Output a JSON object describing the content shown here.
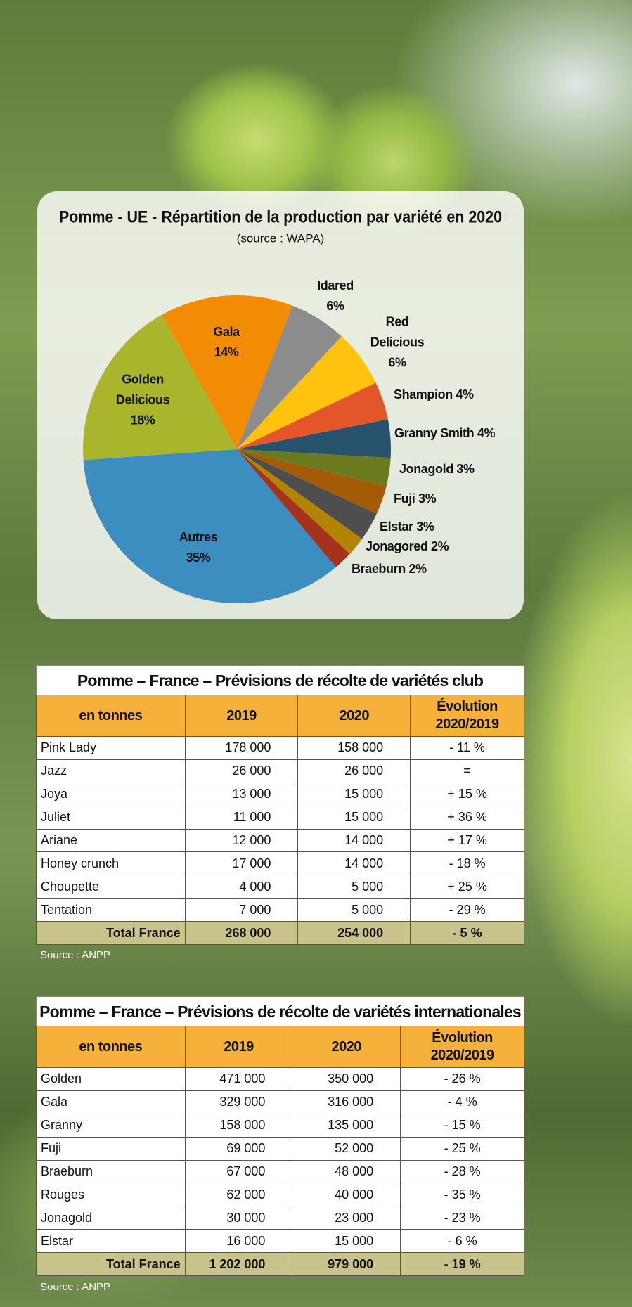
{
  "chart_data": {
    "type": "pie",
    "title": "Pomme - UE - Répartition de la production par variété en 2020",
    "subtitle": "(source : WAPA)",
    "categories": [
      "Autres",
      "Golden Delicious",
      "Gala",
      "Idared",
      "Red Delicious",
      "Shampion",
      "Granny Smith",
      "Jonagold",
      "Fuji",
      "Elstar",
      "Jonagored",
      "Braeburn"
    ],
    "values": [
      35,
      18,
      14,
      6,
      6,
      4,
      4,
      3,
      3,
      3,
      2,
      2
    ],
    "value_labels": [
      "35%",
      "18%",
      "14%",
      "6%",
      "6%",
      "4%",
      "4%",
      "3%",
      "3%",
      "3%",
      "2%",
      "2%"
    ],
    "colors": [
      "#3d8ec0",
      "#a9b52a",
      "#f28c05",
      "#8c8c8c",
      "#ffc20e",
      "#e3562a",
      "#26536b",
      "#6b7a1f",
      "#a45b05",
      "#4e4e4e",
      "#b18405",
      "#a5321b"
    ]
  },
  "table_club": {
    "title": "Pomme – France – Prévisions de récolte de variétés club",
    "header": [
      "en tonnes",
      "2019",
      "2020",
      "Évolution 2020/2019"
    ],
    "rows": [
      [
        "Pink Lady",
        "178 000",
        "158 000",
        "- 11 %"
      ],
      [
        "Jazz",
        "26 000",
        "26 000",
        "="
      ],
      [
        "Joya",
        "13 000",
        "15 000",
        "+ 15 %"
      ],
      [
        "Juliet",
        "11 000",
        "15 000",
        "+ 36 %"
      ],
      [
        "Ariane",
        "12 000",
        "14 000",
        "+ 17 %"
      ],
      [
        "Honey crunch",
        "17 000",
        "14 000",
        "- 18 %"
      ],
      [
        "Choupette",
        "4 000",
        "5 000",
        "+ 25 %"
      ],
      [
        "Tentation",
        "7 000",
        "5 000",
        "- 29 %"
      ]
    ],
    "total": [
      "Total France",
      "268 000",
      "254 000",
      "- 5 %"
    ],
    "source": "Source : ANPP"
  },
  "table_intl": {
    "title": "Pomme – France – Prévisions de récolte de variétés internationales",
    "header": [
      "en tonnes",
      "2019",
      "2020",
      "Évolution 2020/2019"
    ],
    "rows": [
      [
        "Golden",
        "471 000",
        "350 000",
        "- 26 %"
      ],
      [
        "Gala",
        "329 000",
        "316 000",
        "- 4 %"
      ],
      [
        "Granny",
        "158 000",
        "135 000",
        "- 15 %"
      ],
      [
        "Fuji",
        "69 000",
        "52 000",
        "- 25 %"
      ],
      [
        "Braeburn",
        "67 000",
        "48 000",
        "- 28 %"
      ],
      [
        "Rouges",
        "62 000",
        "40 000",
        "- 35 %"
      ],
      [
        "Jonagold",
        "30 000",
        "23 000",
        "- 23 %"
      ],
      [
        "Elstar",
        "16 000",
        "15 000",
        "- 6 %"
      ]
    ],
    "total": [
      "Total France",
      "1 202 000",
      "979 000",
      "- 19 %"
    ],
    "source": "Source : ANPP"
  }
}
